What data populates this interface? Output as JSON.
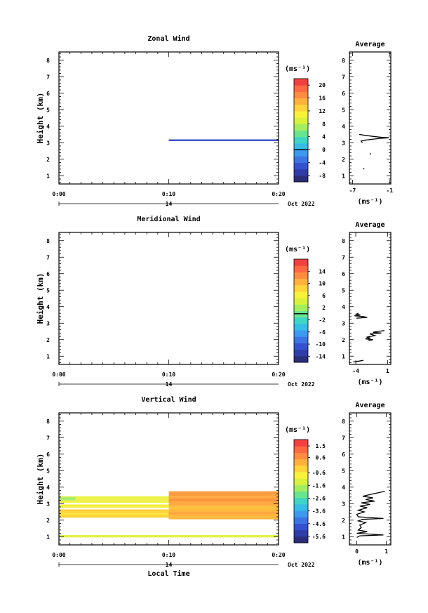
{
  "chart_data": [
    {
      "type": "heatmap",
      "title": "Zonal Wind",
      "ylabel": "Height (km)",
      "ylim": [
        0.5,
        8.5
      ],
      "yticks": [
        "1",
        "2",
        "3",
        "4",
        "5",
        "6",
        "7",
        "8"
      ],
      "xticks": [
        "0:00",
        "0:10",
        "0:20"
      ],
      "day_label": "14",
      "date_label": "Oct 2022",
      "cells": [
        {
          "t0": 10,
          "t1": 20,
          "h0": 3.1,
          "h1": 3.2,
          "color": "#3048c8"
        }
      ],
      "colorbar": {
        "unit": "(ms⁻¹)",
        "ticks": [
          "20",
          "16",
          "12",
          "8",
          "4",
          "0",
          "-4",
          "-8"
        ],
        "min": -10,
        "max": 22,
        "zero_line": 0,
        "colors": [
          "#2a2d78",
          "#2f3da8",
          "#3452d0",
          "#3c74e6",
          "#3c99ef",
          "#34bde6",
          "#3ed6c4",
          "#69e58f",
          "#a3ee5f",
          "#d8f23c",
          "#f9f23a",
          "#ffd43a",
          "#ffb13c",
          "#ff8c40",
          "#ff6842",
          "#f04040"
        ]
      },
      "average": {
        "title": "Average",
        "xlabel": "(ms⁻¹)",
        "xticks": [
          "-7",
          "-1"
        ],
        "xlim": [
          -7.5,
          -0.8
        ],
        "profiles": [
          [
            [
              -5.9,
              3.5
            ],
            [
              -5.0,
              3.45
            ],
            [
              -3.6,
              3.38
            ],
            [
              -2.2,
              3.32
            ],
            [
              -1.1,
              3.3
            ],
            [
              -2.2,
              3.27
            ],
            [
              -3.6,
              3.22
            ],
            [
              -5.0,
              3.15
            ],
            [
              -5.6,
              3.1
            ],
            [
              -5.4,
              3.0
            ]
          ],
          [
            [
              -4.2,
              2.35
            ],
            [
              -4.0,
              2.3
            ]
          ],
          [
            [
              -5.3,
              1.45
            ],
            [
              -5.1,
              1.4
            ]
          ]
        ]
      }
    },
    {
      "type": "heatmap",
      "title": "Meridional Wind",
      "ylabel": "Height (km)",
      "ylim": [
        0.5,
        8.5
      ],
      "yticks": [
        "1",
        "2",
        "3",
        "4",
        "5",
        "6",
        "7",
        "8"
      ],
      "xticks": [
        "0:00",
        "0:10",
        "0:20"
      ],
      "day_label": "14",
      "date_label": "Oct 2022",
      "cells": [],
      "colorbar": {
        "unit": "(ms⁻¹)",
        "ticks": [
          "14",
          "10",
          "6",
          "2",
          "-2",
          "-6",
          "-10",
          "-14"
        ],
        "min": -16,
        "max": 18,
        "zero_line": 0,
        "colors": [
          "#2a2d78",
          "#2f3da8",
          "#3452d0",
          "#3c74e6",
          "#3c99ef",
          "#34bde6",
          "#3ed6c4",
          "#69e58f",
          "#a3ee5f",
          "#d8f23c",
          "#f9f23a",
          "#ffd43a",
          "#ffb13c",
          "#ff8c40",
          "#ff6842",
          "#f04040"
        ]
      },
      "average": {
        "title": "Average",
        "xlabel": "(ms⁻¹)",
        "xticks": [
          "-4",
          "1"
        ],
        "xlim": [
          -5,
          1.5
        ],
        "profiles": [
          [
            [
              -3.6,
              3.6
            ],
            [
              -3.9,
              3.55
            ],
            [
              -3.3,
              3.5
            ],
            [
              -4.2,
              3.45
            ],
            [
              -2.8,
              3.4
            ],
            [
              -2.2,
              3.35
            ],
            [
              -3.9,
              3.3
            ]
          ],
          [
            [
              0.5,
              2.55
            ],
            [
              -0.5,
              2.5
            ],
            [
              -1.3,
              2.45
            ],
            [
              0.0,
              2.4
            ],
            [
              -1.8,
              2.35
            ],
            [
              -1.0,
              2.25
            ],
            [
              -2.3,
              2.15
            ],
            [
              -1.7,
              2.1
            ],
            [
              -2.5,
              2.05
            ],
            [
              -1.3,
              2.0
            ],
            [
              -2.0,
              1.95
            ]
          ],
          [
            [
              -4.4,
              0.65
            ],
            [
              -3.5,
              0.7
            ],
            [
              -2.8,
              0.75
            ]
          ]
        ]
      }
    },
    {
      "type": "heatmap",
      "title": "Vertical Wind",
      "ylabel": "Height (km)",
      "xlabel": "Local Time",
      "ylim": [
        0.5,
        8.5
      ],
      "yticks": [
        "1",
        "2",
        "3",
        "4",
        "5",
        "6",
        "7",
        "8"
      ],
      "xticks": [
        "0:00",
        "0:10",
        "0:20"
      ],
      "day_label": "14",
      "date_label": "Oct 2022",
      "cells": [
        {
          "t0": 0,
          "t1": 10,
          "h0": 3.05,
          "h1": 3.45,
          "color": "#eef24a"
        },
        {
          "t0": 0,
          "t1": 1.5,
          "h0": 3.2,
          "h1": 3.4,
          "color": "#a8ee6a"
        },
        {
          "t0": 0,
          "t1": 10,
          "h0": 2.75,
          "h1": 2.95,
          "color": "#f4ee3c"
        },
        {
          "t0": 0,
          "t1": 10,
          "h0": 2.15,
          "h1": 2.65,
          "color": "#ffd23c"
        },
        {
          "t0": 0,
          "t1": 10,
          "h0": 2.3,
          "h1": 2.45,
          "color": "#ffe23c"
        },
        {
          "t0": 10,
          "t1": 20,
          "h0": 3.45,
          "h1": 3.75,
          "color": "#ff9d40"
        },
        {
          "t0": 10,
          "t1": 20,
          "h0": 2.85,
          "h1": 3.45,
          "color": "#ffaa40"
        },
        {
          "t0": 10,
          "t1": 20,
          "h0": 3.15,
          "h1": 3.3,
          "color": "#ff9240"
        },
        {
          "t0": 10,
          "t1": 20,
          "h0": 2.65,
          "h1": 2.85,
          "color": "#ffc03c"
        },
        {
          "t0": 10,
          "t1": 20,
          "h0": 2.05,
          "h1": 2.65,
          "color": "#ffb83e"
        },
        {
          "t0": 10,
          "t1": 20,
          "h0": 2.35,
          "h1": 2.5,
          "color": "#ffa640"
        },
        {
          "t0": 0,
          "t1": 20,
          "h0": 0.95,
          "h1": 1.1,
          "color": "#e4f24a"
        }
      ],
      "colorbar": {
        "unit": "(ms⁻¹)",
        "ticks": [
          "1.5",
          "0.6",
          "-0.6",
          "-1.6",
          "-2.6",
          "-3.6",
          "-4.6",
          "-5.6"
        ],
        "min": -6.1,
        "max": 2.0,
        "zero_line": null,
        "colors": [
          "#2a2d78",
          "#2f3da8",
          "#3452d0",
          "#3c74e6",
          "#3c99ef",
          "#34bde6",
          "#3ed6c4",
          "#69e58f",
          "#a3ee5f",
          "#d8f23c",
          "#f9f23a",
          "#ffd43a",
          "#ffb13c",
          "#ff8c40",
          "#ff6842",
          "#f04040"
        ]
      },
      "average": {
        "title": "Average",
        "xlabel": "(ms⁻¹)",
        "xticks": [
          "0",
          "1"
        ],
        "xlim": [
          -0.25,
          1.15
        ],
        "profiles": [
          [
            [
              0.95,
              3.75
            ],
            [
              0.7,
              3.65
            ],
            [
              0.45,
              3.55
            ],
            [
              0.2,
              3.45
            ],
            [
              0.55,
              3.35
            ],
            [
              0.3,
              3.25
            ],
            [
              0.6,
              3.15
            ],
            [
              0.15,
              3.05
            ],
            [
              0.45,
              2.95
            ],
            [
              0.1,
              2.85
            ],
            [
              0.35,
              2.75
            ],
            [
              0.05,
              2.6
            ],
            [
              0.25,
              2.5
            ],
            [
              0.0,
              2.35
            ],
            [
              0.05,
              2.2
            ],
            [
              0.9,
              2.1
            ],
            [
              0.2,
              2.05
            ],
            [
              0.05,
              1.95
            ],
            [
              0.3,
              1.85
            ],
            [
              0.1,
              1.7
            ],
            [
              0.15,
              1.55
            ],
            [
              0.05,
              1.4
            ],
            [
              0.35,
              1.3
            ],
            [
              0.0,
              1.2
            ],
            [
              0.9,
              1.1
            ],
            [
              0.1,
              1.05
            ],
            [
              0.0,
              0.95
            ]
          ]
        ]
      }
    }
  ]
}
